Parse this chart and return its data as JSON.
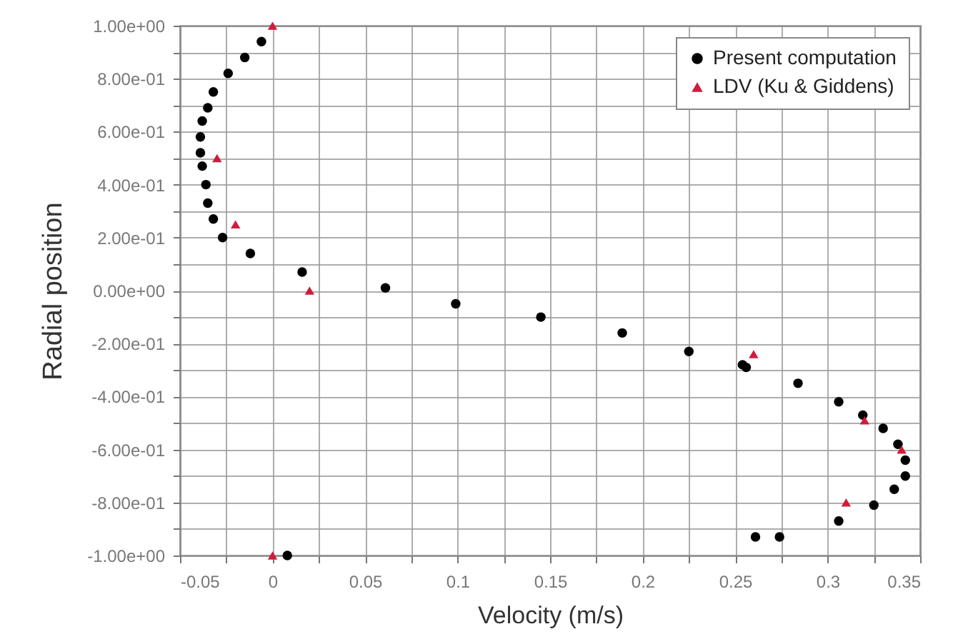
{
  "chart_data": {
    "type": "scatter",
    "xlabel": "Velocity (m/s)",
    "ylabel": "Radial position",
    "xlim": [
      -0.05,
      0.35
    ],
    "xticks": [
      -0.05,
      {
        "value": -0.025,
        "label": null
      },
      0,
      {
        "value": 0.025,
        "label": null
      },
      0.05,
      {
        "value": 0.075,
        "label": null
      },
      0.1,
      {
        "value": 0.125,
        "label": null
      },
      0.15,
      {
        "value": 0.175,
        "label": null
      },
      0.2,
      {
        "value": 0.225,
        "label": null
      },
      0.25,
      {
        "value": 0.275,
        "label": null
      },
      0.3,
      {
        "value": 0.325,
        "label": null
      },
      0.35
    ],
    "ylim": [
      -1,
      1
    ],
    "yticks": [
      {
        "value": -1,
        "label": "-1.00e+00"
      },
      {
        "value": -0.9,
        "label": null
      },
      {
        "value": -0.8,
        "label": "-8.00e-01"
      },
      {
        "value": -0.7,
        "label": null
      },
      {
        "value": -0.6,
        "label": "-6.00e-01"
      },
      {
        "value": -0.5,
        "label": null
      },
      {
        "value": -0.4,
        "label": "-4.00e-01"
      },
      {
        "value": -0.3,
        "label": null
      },
      {
        "value": -0.2,
        "label": "-2.00e-01"
      },
      {
        "value": -0.1,
        "label": null
      },
      {
        "value": 0,
        "label": "0.00e+00"
      },
      {
        "value": 0.1,
        "label": null
      },
      {
        "value": 0.2,
        "label": "2.00e-01"
      },
      {
        "value": 0.3,
        "label": null
      },
      {
        "value": 0.4,
        "label": "4.00e-01"
      },
      {
        "value": 0.5,
        "label": null
      },
      {
        "value": 0.6,
        "label": "6.00e-01"
      },
      {
        "value": 0.7,
        "label": null
      },
      {
        "value": 0.8,
        "label": "8.00e-01"
      },
      {
        "value": 0.9,
        "label": null
      },
      {
        "value": 1,
        "label": "1.00e+00"
      }
    ],
    "grid": true,
    "legend": "top right",
    "series": [
      {
        "name": "Present computation",
        "color": "#000000",
        "marker": "circle",
        "x": [
          -0.006,
          -0.015,
          -0.024,
          -0.032,
          -0.035,
          -0.038,
          -0.039,
          -0.039,
          -0.038,
          -0.036,
          -0.035,
          -0.032,
          -0.027,
          -0.012,
          0.016,
          0.061,
          0.099,
          0.145,
          0.189,
          0.225,
          0.254,
          0.256,
          0.284,
          0.306,
          0.319,
          0.33,
          0.338,
          0.342,
          0.342,
          0.336,
          0.325,
          0.306,
          0.274,
          0.261,
          0.008
        ],
        "values": [
          0.94,
          0.88,
          0.82,
          0.75,
          0.69,
          0.64,
          0.58,
          0.52,
          0.47,
          0.4,
          0.33,
          0.27,
          0.2,
          0.14,
          0.07,
          0.01,
          -0.05,
          -0.1,
          -0.16,
          -0.23,
          -0.28,
          -0.29,
          -0.35,
          -0.42,
          -0.47,
          -0.52,
          -0.58,
          -0.64,
          -0.7,
          -0.75,
          -0.81,
          -0.87,
          -0.93,
          -0.93,
          -1.0
        ]
      },
      {
        "name": "LDV (Ku & Giddens)",
        "color": "#d01c3c",
        "marker": "triangle",
        "x": [
          0,
          -0.03,
          -0.02,
          0.02,
          0,
          0.26,
          0.32,
          0.34,
          0.31
        ],
        "values": [
          1.0,
          0.5,
          0.25,
          0.0,
          -1.0,
          -0.24,
          -0.49,
          -0.6,
          -0.8
        ]
      }
    ]
  }
}
